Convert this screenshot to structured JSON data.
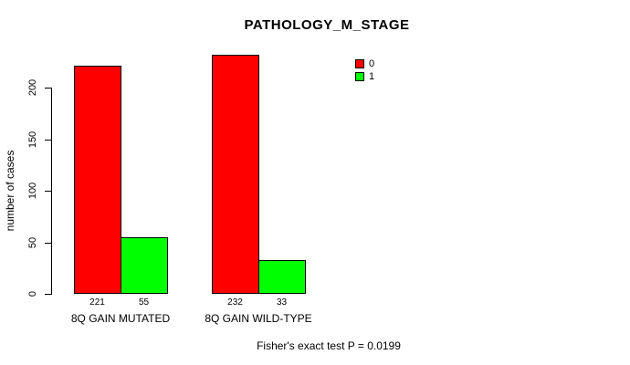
{
  "background": "#ffffff",
  "chart_data": {
    "type": "bar",
    "title": "PATHOLOGY_M_STAGE",
    "xlabel": "",
    "ylabel": "number of cases",
    "ylim": [
      0,
      200
    ],
    "yticks": [
      0,
      50,
      100,
      150,
      200
    ],
    "categories": [
      "8Q GAIN MUTATED",
      "8Q GAIN WILD-TYPE"
    ],
    "series": [
      {
        "name": "0",
        "color": "#ff0000",
        "values": [
          221,
          232
        ]
      },
      {
        "name": "1",
        "color": "#00ff00",
        "values": [
          55,
          33
        ]
      }
    ],
    "bar_border_color": "#000000",
    "value_labels_shown": true,
    "legend_position": "top-right",
    "grid": false,
    "annotation": "Fisher's exact test P = 0.0199"
  }
}
